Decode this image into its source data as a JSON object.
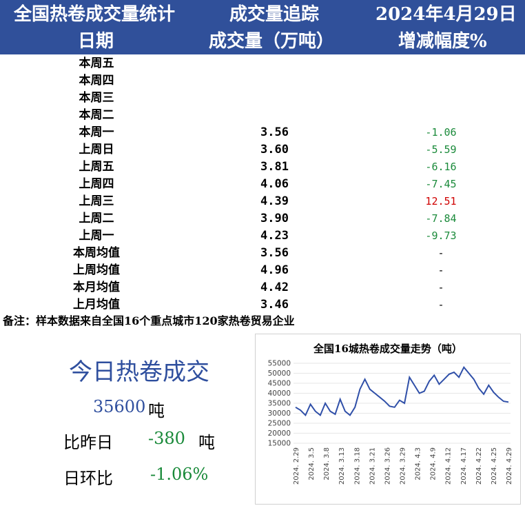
{
  "header": {
    "col1": "全国热卷成交量统计",
    "col2": "成交量追踪",
    "col3": "2024年4月29日",
    "sub1": "日期",
    "sub2": "成交量（万吨）",
    "sub3": "增减幅度%"
  },
  "rows": [
    {
      "date": "本周五",
      "vol": "",
      "chg": ""
    },
    {
      "date": "本周四",
      "vol": "",
      "chg": ""
    },
    {
      "date": "本周三",
      "vol": "",
      "chg": ""
    },
    {
      "date": "本周二",
      "vol": "",
      "chg": ""
    },
    {
      "date": "本周一",
      "vol": "3.56",
      "chg": "-1.06"
    },
    {
      "date": "上周日",
      "vol": "3.60",
      "chg": "-5.59"
    },
    {
      "date": "上周五",
      "vol": "3.81",
      "chg": "-6.16"
    },
    {
      "date": "上周四",
      "vol": "4.06",
      "chg": "-7.45"
    },
    {
      "date": "上周三",
      "vol": "4.39",
      "chg": "12.51"
    },
    {
      "date": "上周二",
      "vol": "3.90",
      "chg": "-7.84"
    },
    {
      "date": "上周一",
      "vol": "4.23",
      "chg": "-9.73"
    },
    {
      "date": "本周均值",
      "vol": "3.56",
      "chg": "-"
    },
    {
      "date": "上周均值",
      "vol": "4.96",
      "chg": "-"
    },
    {
      "date": "本月均值",
      "vol": "4.42",
      "chg": "-"
    },
    {
      "date": "上月均值",
      "vol": "3.46",
      "chg": "-"
    }
  ],
  "colors": {
    "header_bg": "#30509a",
    "negative": "#1a8a3a",
    "positive": "#d00000",
    "line": "#2f4fa8",
    "accent": "#2f4f9e"
  },
  "note": "备注：样本数据来自全国16个重点城市120家热卷贸易企业",
  "summary": {
    "title": "今日热卷成交",
    "volume": "35600",
    "unit": "吨",
    "vs_label": "比昨日",
    "vs_value": "-380",
    "vs_unit": "吨",
    "ratio_label": "日环比",
    "ratio_value": "-1.06%"
  },
  "chart_data": {
    "type": "line",
    "title": "全国16城热卷成交量走势（吨）",
    "ylim": [
      15000,
      55000
    ],
    "yticks": [
      15000,
      20000,
      25000,
      30000,
      35000,
      40000,
      45000,
      50000,
      55000
    ],
    "xtick_labels": [
      "2024. 2.29",
      "2024. 3.5",
      "2024. 3.8",
      "2024. 3.13",
      "2024. 3.18",
      "2024. 3.21",
      "2024. 3.26",
      "2024. 3.29",
      "2024. 4.3",
      "2024. 4.9",
      "2024. 4.12",
      "2024. 4.17",
      "2024. 4.22",
      "2024. 4.25",
      "2024. 4.29"
    ],
    "series": [
      {
        "values": [
          33000,
          31500,
          29000,
          34500,
          31000,
          29000,
          35000,
          31000,
          29500,
          37000,
          31000,
          29000,
          33000,
          42000,
          47000,
          42000,
          40000,
          38000,
          36000,
          33500,
          33000,
          36500,
          35000,
          48000,
          44000,
          40000,
          41000,
          46000,
          49000,
          44500,
          47000,
          49500,
          50500,
          48000,
          53000,
          50000,
          47000,
          42500,
          39500,
          44000,
          40500,
          38000,
          36000,
          35600
        ]
      }
    ]
  }
}
